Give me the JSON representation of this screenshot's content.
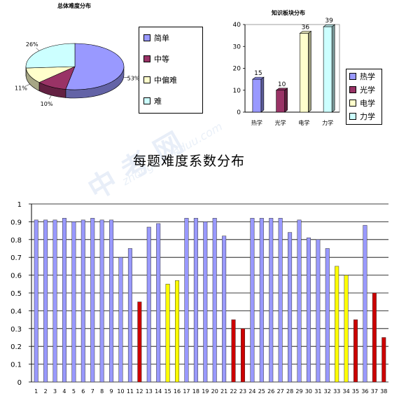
{
  "watermark": {
    "main": "中 考 网",
    "sub": "zhongkao.eduu.com"
  },
  "chart_data": [
    {
      "type": "pie",
      "title": "总体难度分布",
      "categories": [
        "简单",
        "中等",
        "中偏难",
        "难"
      ],
      "values": [
        53,
        10,
        11,
        26
      ],
      "value_labels": [
        "53%",
        "10%",
        "11%",
        "26%"
      ],
      "colors": [
        "#9999ff",
        "#993366",
        "#ffffcc",
        "#ccffff"
      ],
      "legend_position": "right"
    },
    {
      "type": "bar",
      "title": "知识板块分布",
      "categories": [
        "热学",
        "光学",
        "电学",
        "力学"
      ],
      "values": [
        15,
        10,
        36,
        39
      ],
      "colors": [
        "#9999ff",
        "#993366",
        "#ffffcc",
        "#ccffff"
      ],
      "ylim": [
        0,
        40
      ],
      "yticks": [
        0,
        10,
        20,
        30,
        40
      ],
      "legend_position": "right",
      "grid": false
    },
    {
      "type": "bar",
      "title": "每题难度系数分布",
      "categories": [
        "1",
        "2",
        "3",
        "4",
        "5",
        "6",
        "7",
        "8",
        "9",
        "10",
        "11",
        "12",
        "13",
        "14",
        "15",
        "16",
        "17",
        "18",
        "19",
        "20",
        "21",
        "22",
        "23",
        "24",
        "25",
        "26",
        "27",
        "28",
        "29",
        "30",
        "31",
        "32",
        "33",
        "34",
        "35",
        "36",
        "37",
        "38"
      ],
      "values": [
        0.91,
        0.91,
        0.91,
        0.92,
        0.9,
        0.91,
        0.92,
        0.91,
        0.91,
        0.7,
        0.75,
        0.45,
        0.87,
        0.89,
        0.55,
        0.57,
        0.92,
        0.92,
        0.9,
        0.92,
        0.82,
        0.35,
        0.3,
        0.92,
        0.92,
        0.92,
        0.92,
        0.84,
        0.91,
        0.81,
        0.8,
        0.75,
        0.65,
        0.6,
        0.35,
        0.88,
        0.5,
        0.25
      ],
      "bar_colors": [
        "#9999ff",
        "#9999ff",
        "#9999ff",
        "#9999ff",
        "#9999ff",
        "#9999ff",
        "#9999ff",
        "#9999ff",
        "#9999ff",
        "#9999ff",
        "#9999ff",
        "#cc0000",
        "#9999ff",
        "#9999ff",
        "#ffff00",
        "#ffff00",
        "#9999ff",
        "#9999ff",
        "#9999ff",
        "#9999ff",
        "#9999ff",
        "#cc0000",
        "#cc0000",
        "#9999ff",
        "#9999ff",
        "#9999ff",
        "#9999ff",
        "#9999ff",
        "#9999ff",
        "#9999ff",
        "#9999ff",
        "#9999ff",
        "#ffff00",
        "#ffff00",
        "#cc0000",
        "#9999ff",
        "#cc0000",
        "#cc0000"
      ],
      "ylim": [
        0,
        1
      ],
      "yticks": [
        "0",
        "0.1",
        "0.2",
        "0.3",
        "0.4",
        "0.5",
        "0.6",
        "0.7",
        "0.8",
        "0.9",
        "1"
      ],
      "grid": true
    }
  ]
}
